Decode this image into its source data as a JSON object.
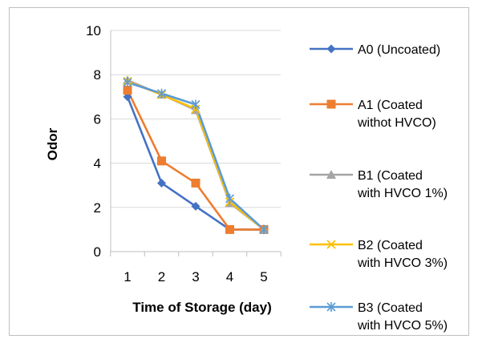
{
  "chart_data": {
    "type": "line",
    "title": "",
    "xlabel": "Time of Storage (day)",
    "ylabel": "Odor",
    "x": [
      1,
      2,
      3,
      4,
      5
    ],
    "ylim": [
      0,
      10
    ],
    "yticks": [
      0,
      2,
      4,
      6,
      8,
      10
    ],
    "grid": "horizontal",
    "legend_position": "right",
    "series": [
      {
        "name": "A0 (Uncoated)",
        "lines": [
          "A0 (Uncoated)"
        ],
        "color": "#4472c4",
        "marker": "diamond",
        "values": [
          7.0,
          3.1,
          2.05,
          1.0,
          1.0
        ]
      },
      {
        "name": "A1 (Coated withot HVCO)",
        "lines": [
          "A1 (Coated",
          "withot HVCO)"
        ],
        "color": "#ed7d31",
        "marker": "square",
        "values": [
          7.3,
          4.1,
          3.1,
          1.0,
          1.0
        ]
      },
      {
        "name": "B1 (Coated with HVCO 1%)",
        "lines": [
          "B1 (Coated",
          "with HVCO 1%)"
        ],
        "color": "#a5a5a5",
        "marker": "triangle",
        "values": [
          7.75,
          7.1,
          6.4,
          2.2,
          1.0
        ]
      },
      {
        "name": "B2 (Coated with HVCO 3%)",
        "lines": [
          "B2 (Coated",
          "with HVCO 3%)"
        ],
        "color": "#ffc000",
        "marker": "x",
        "values": [
          7.7,
          7.1,
          6.45,
          2.25,
          1.0
        ]
      },
      {
        "name": "B3 (Coated with HVCO 5%)",
        "lines": [
          "B3 (Coated",
          "with HVCO 5%)"
        ],
        "color": "#5b9bd5",
        "marker": "star",
        "values": [
          7.65,
          7.15,
          6.65,
          2.4,
          1.0
        ]
      }
    ]
  }
}
